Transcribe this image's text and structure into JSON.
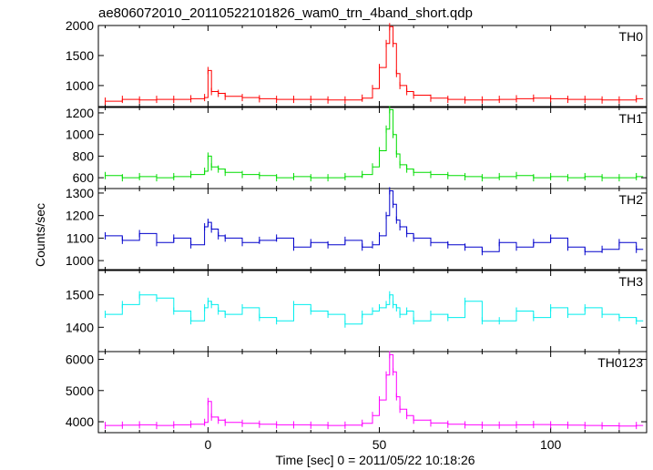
{
  "chart_data": {
    "type": "line",
    "title": "ae806072010_20110522101826_wam0_trn_4band_short.qdp",
    "ylabel": "Counts/sec",
    "xlabel": "Time [sec] 0 = 2011/05/22 10:18:26",
    "xlim": [
      -32,
      128
    ],
    "x_ticks": [
      0,
      50,
      100
    ],
    "panels": [
      {
        "name": "TH0",
        "color": "#ff0000",
        "ylim": [
          650,
          2000
        ],
        "y_ticks": [
          1000,
          1500,
          2000
        ],
        "x": [
          -30,
          -25,
          -20,
          -15,
          -10,
          -5,
          -1,
          0,
          1,
          3,
          5,
          10,
          15,
          20,
          25,
          30,
          35,
          40,
          45,
          48,
          50,
          52,
          53,
          54,
          55,
          56,
          58,
          60,
          65,
          70,
          75,
          80,
          85,
          90,
          95,
          100,
          105,
          110,
          115,
          120,
          125
        ],
        "values": [
          740,
          770,
          760,
          770,
          770,
          780,
          800,
          1250,
          900,
          870,
          820,
          800,
          780,
          770,
          770,
          770,
          760,
          760,
          790,
          950,
          1300,
          1700,
          1980,
          1700,
          1200,
          1000,
          900,
          840,
          790,
          770,
          760,
          760,
          770,
          780,
          790,
          780,
          770,
          770,
          760,
          760,
          780
        ]
      },
      {
        "name": "TH1",
        "color": "#00dd00",
        "ylim": [
          500,
          1250
        ],
        "y_ticks": [
          600,
          800,
          1000,
          1200
        ],
        "x": [
          -30,
          -25,
          -20,
          -15,
          -10,
          -5,
          -1,
          0,
          1,
          3,
          5,
          10,
          15,
          20,
          25,
          30,
          35,
          40,
          45,
          48,
          50,
          52,
          53,
          54,
          55,
          56,
          58,
          60,
          65,
          70,
          75,
          80,
          85,
          90,
          95,
          100,
          105,
          110,
          115,
          120,
          125
        ],
        "values": [
          620,
          600,
          610,
          600,
          610,
          630,
          660,
          800,
          700,
          680,
          650,
          630,
          620,
          600,
          610,
          600,
          600,
          610,
          630,
          700,
          850,
          1050,
          1230,
          1000,
          820,
          720,
          680,
          650,
          630,
          620,
          610,
          600,
          610,
          620,
          600,
          610,
          600,
          610,
          600,
          600,
          610
        ]
      },
      {
        "name": "TH2",
        "color": "#0000cc",
        "ylim": [
          960,
          1320
        ],
        "y_ticks": [
          1000,
          1100,
          1200,
          1300
        ],
        "x": [
          -30,
          -25,
          -20,
          -15,
          -10,
          -5,
          -1,
          0,
          1,
          3,
          5,
          10,
          15,
          20,
          25,
          30,
          35,
          40,
          45,
          48,
          50,
          52,
          53,
          54,
          55,
          56,
          58,
          60,
          65,
          70,
          75,
          80,
          85,
          90,
          95,
          100,
          105,
          110,
          115,
          120,
          125
        ],
        "values": [
          1110,
          1090,
          1120,
          1080,
          1100,
          1070,
          1150,
          1170,
          1140,
          1110,
          1100,
          1080,
          1090,
          1100,
          1060,
          1080,
          1070,
          1090,
          1060,
          1070,
          1110,
          1200,
          1310,
          1250,
          1180,
          1150,
          1120,
          1100,
          1080,
          1070,
          1060,
          1040,
          1080,
          1060,
          1080,
          1100,
          1060,
          1040,
          1050,
          1080,
          1050
        ]
      },
      {
        "name": "TH3",
        "color": "#00eeee",
        "ylim": [
          1325,
          1575
        ],
        "y_ticks": [
          1400,
          1500
        ],
        "x": [
          -30,
          -25,
          -20,
          -15,
          -10,
          -5,
          -1,
          0,
          1,
          3,
          5,
          10,
          15,
          20,
          25,
          30,
          35,
          40,
          45,
          48,
          50,
          52,
          53,
          54,
          55,
          56,
          58,
          60,
          65,
          70,
          75,
          80,
          85,
          90,
          95,
          100,
          105,
          110,
          115,
          120,
          125
        ],
        "values": [
          1440,
          1470,
          1500,
          1490,
          1450,
          1420,
          1460,
          1480,
          1470,
          1450,
          1440,
          1460,
          1430,
          1420,
          1470,
          1450,
          1440,
          1410,
          1440,
          1450,
          1460,
          1470,
          1500,
          1470,
          1460,
          1440,
          1450,
          1420,
          1440,
          1430,
          1480,
          1420,
          1420,
          1450,
          1430,
          1460,
          1440,
          1460,
          1440,
          1430,
          1420
        ]
      },
      {
        "name": "TH0123",
        "color": "#ff00ff",
        "ylim": [
          3650,
          6250
        ],
        "y_ticks": [
          4000,
          5000,
          6000
        ],
        "x": [
          -30,
          -25,
          -20,
          -15,
          -10,
          -5,
          -1,
          0,
          1,
          3,
          5,
          10,
          15,
          20,
          25,
          30,
          35,
          40,
          45,
          48,
          50,
          52,
          53,
          54,
          55,
          56,
          58,
          60,
          65,
          70,
          75,
          80,
          85,
          90,
          95,
          100,
          105,
          110,
          115,
          120,
          125
        ],
        "values": [
          3880,
          3890,
          3900,
          3880,
          3900,
          3920,
          3980,
          4650,
          4150,
          4050,
          3980,
          3950,
          3920,
          3900,
          3900,
          3890,
          3880,
          3890,
          3950,
          4200,
          4700,
          5500,
          6150,
          5600,
          4800,
          4400,
          4200,
          4050,
          3960,
          3920,
          3900,
          3890,
          3890,
          3900,
          3910,
          3900,
          3890,
          3880,
          3870,
          3860,
          3880
        ]
      }
    ]
  }
}
